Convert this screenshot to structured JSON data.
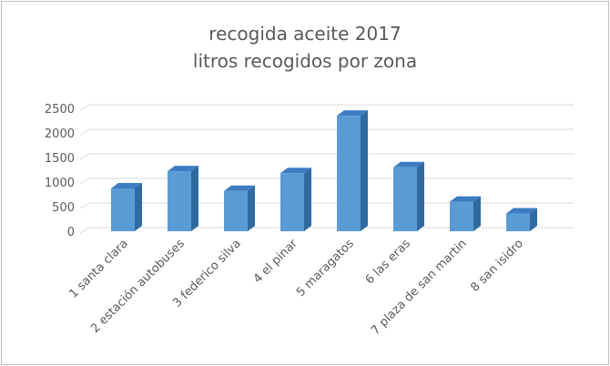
{
  "chart_data": {
    "type": "bar",
    "title": "recogida aceite 2017",
    "subtitle": "litros recogidos por zona",
    "categories": [
      "1 santa clara",
      "2 estación autobuses",
      "3 federico silva",
      "4 el pinar",
      "5 maragatos",
      "6 las eras",
      "7 plaza de san martin",
      "8 san isidro"
    ],
    "values": [
      870,
      1220,
      820,
      1180,
      2350,
      1300,
      600,
      360
    ],
    "ylim": [
      0,
      2500
    ],
    "yticks": [
      0,
      500,
      1000,
      1500,
      2000,
      2500
    ],
    "grid": true,
    "legend": "none",
    "bar_color": "#5b9bd5",
    "bar_side_color": "#2f6aa0",
    "bar_top_color": "#3d7cc0"
  }
}
